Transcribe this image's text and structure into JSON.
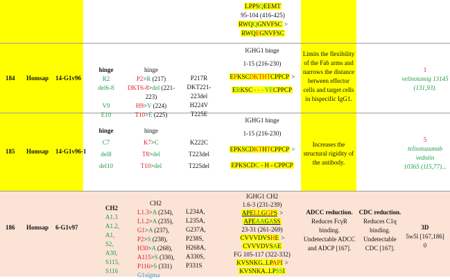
{
  "row_top": {
    "seq_lines": [
      "LPPSQEEMT",
      "95-104 (416-425)",
      "RWQQGNVFSC >",
      "RWQEGNVFSC"
    ]
  },
  "row184": {
    "num": "184",
    "species": "Homsap",
    "code": "14-G1v96",
    "mut_labels": [
      "hinge",
      "R2",
      "del6-8",
      "V9",
      "E10"
    ],
    "positions": [
      "hinge",
      "P2>R (217)",
      "DKT6-8>del (221-",
      "223)",
      "H9>V (224)",
      "T10>E (225)"
    ],
    "eu": [
      "P217R",
      "DKT221-",
      "223del",
      "H224V",
      "T225E"
    ],
    "seq_head": [
      "IGHG1 hinge",
      "1-15 (216-230)"
    ],
    "seq_a": "EPKSCDKTHTCPPCP >",
    "seq_b": "ERKSC - - - VECPPCP",
    "effect": [
      "Limits the flexibility",
      "of the Fab arms and",
      "narrows the distance",
      "between effector",
      "cells and target cells",
      "in bispecific IgG1."
    ],
    "count": "1",
    "ref": [
      "velinotamig 13145",
      "(131,93)."
    ]
  },
  "row185": {
    "num": "185",
    "species": "Homsap",
    "code": "14-G1v96-1",
    "mut_labels": [
      "hinge",
      "C7",
      "del8",
      "del10"
    ],
    "positions": [
      "hinge",
      "K7>C",
      "T8>del",
      "T10>del"
    ],
    "eu": [
      "K222C",
      "T223del",
      "T225del"
    ],
    "seq_head": [
      "IGHG1 hinge",
      "1-15 (216-230)"
    ],
    "seq_a": "EPKSCDKTHTCPPCP >",
    "seq_b": "EPKSCDC - H - CPPCP",
    "effect": [
      "Increases the",
      "structural rigidity of",
      "the antibody."
    ],
    "count": "5",
    "ref": [
      "telisotuzumab",
      "vedotin",
      "10365 (115,77)..."
    ]
  },
  "row186": {
    "num": "186",
    "species": "Homsap",
    "code": "6-G1v97",
    "mut_labels": [
      "CH2",
      "A1.3",
      "A1.2,",
      "A1,",
      "S2,",
      "A30,",
      "S115,",
      "S116"
    ],
    "positions": [
      "CH2",
      "L1.3>A (234),",
      "L1.2>A (235),",
      "G1>A (237),",
      "P2>S (238),",
      "H30>A (268),",
      "A115>S (330),",
      "P116>S (331)",
      "G1sigma"
    ],
    "eu": [
      "L234A,",
      "L235A,",
      "G237A,",
      "P238S,",
      "H268A,",
      "A330S,",
      "P331S"
    ],
    "seq_lines": [
      "IGHG1 CH2",
      "1.6-3 (231-239)",
      "APELLGGPS >",
      "APEAAGASS",
      "23-31 (261-269)",
      "CVVVDVSHE >",
      "CVVVDVSAE",
      "FG 105-117 (322-332)",
      "KVSNKG..LPAPI >",
      "KVSNKA..LPSSI"
    ],
    "adcc": [
      "ADCC reduction.",
      "Reduces FcγR",
      "binding.",
      "Undetectable ADCC",
      "and ADCP [167]."
    ],
    "cdc": [
      "CDC reduction.",
      "Reduces C1q",
      "binding.",
      "Undetectable",
      "CDC [167]."
    ],
    "structure": [
      "3D",
      "5w5l [167,186]",
      "0"
    ]
  },
  "colors": {
    "yellow": "#ffff00",
    "pink": "#fbe3d6",
    "red": "#d8232a",
    "green": "#1f9e48",
    "cyan": "#2aa1c8"
  }
}
